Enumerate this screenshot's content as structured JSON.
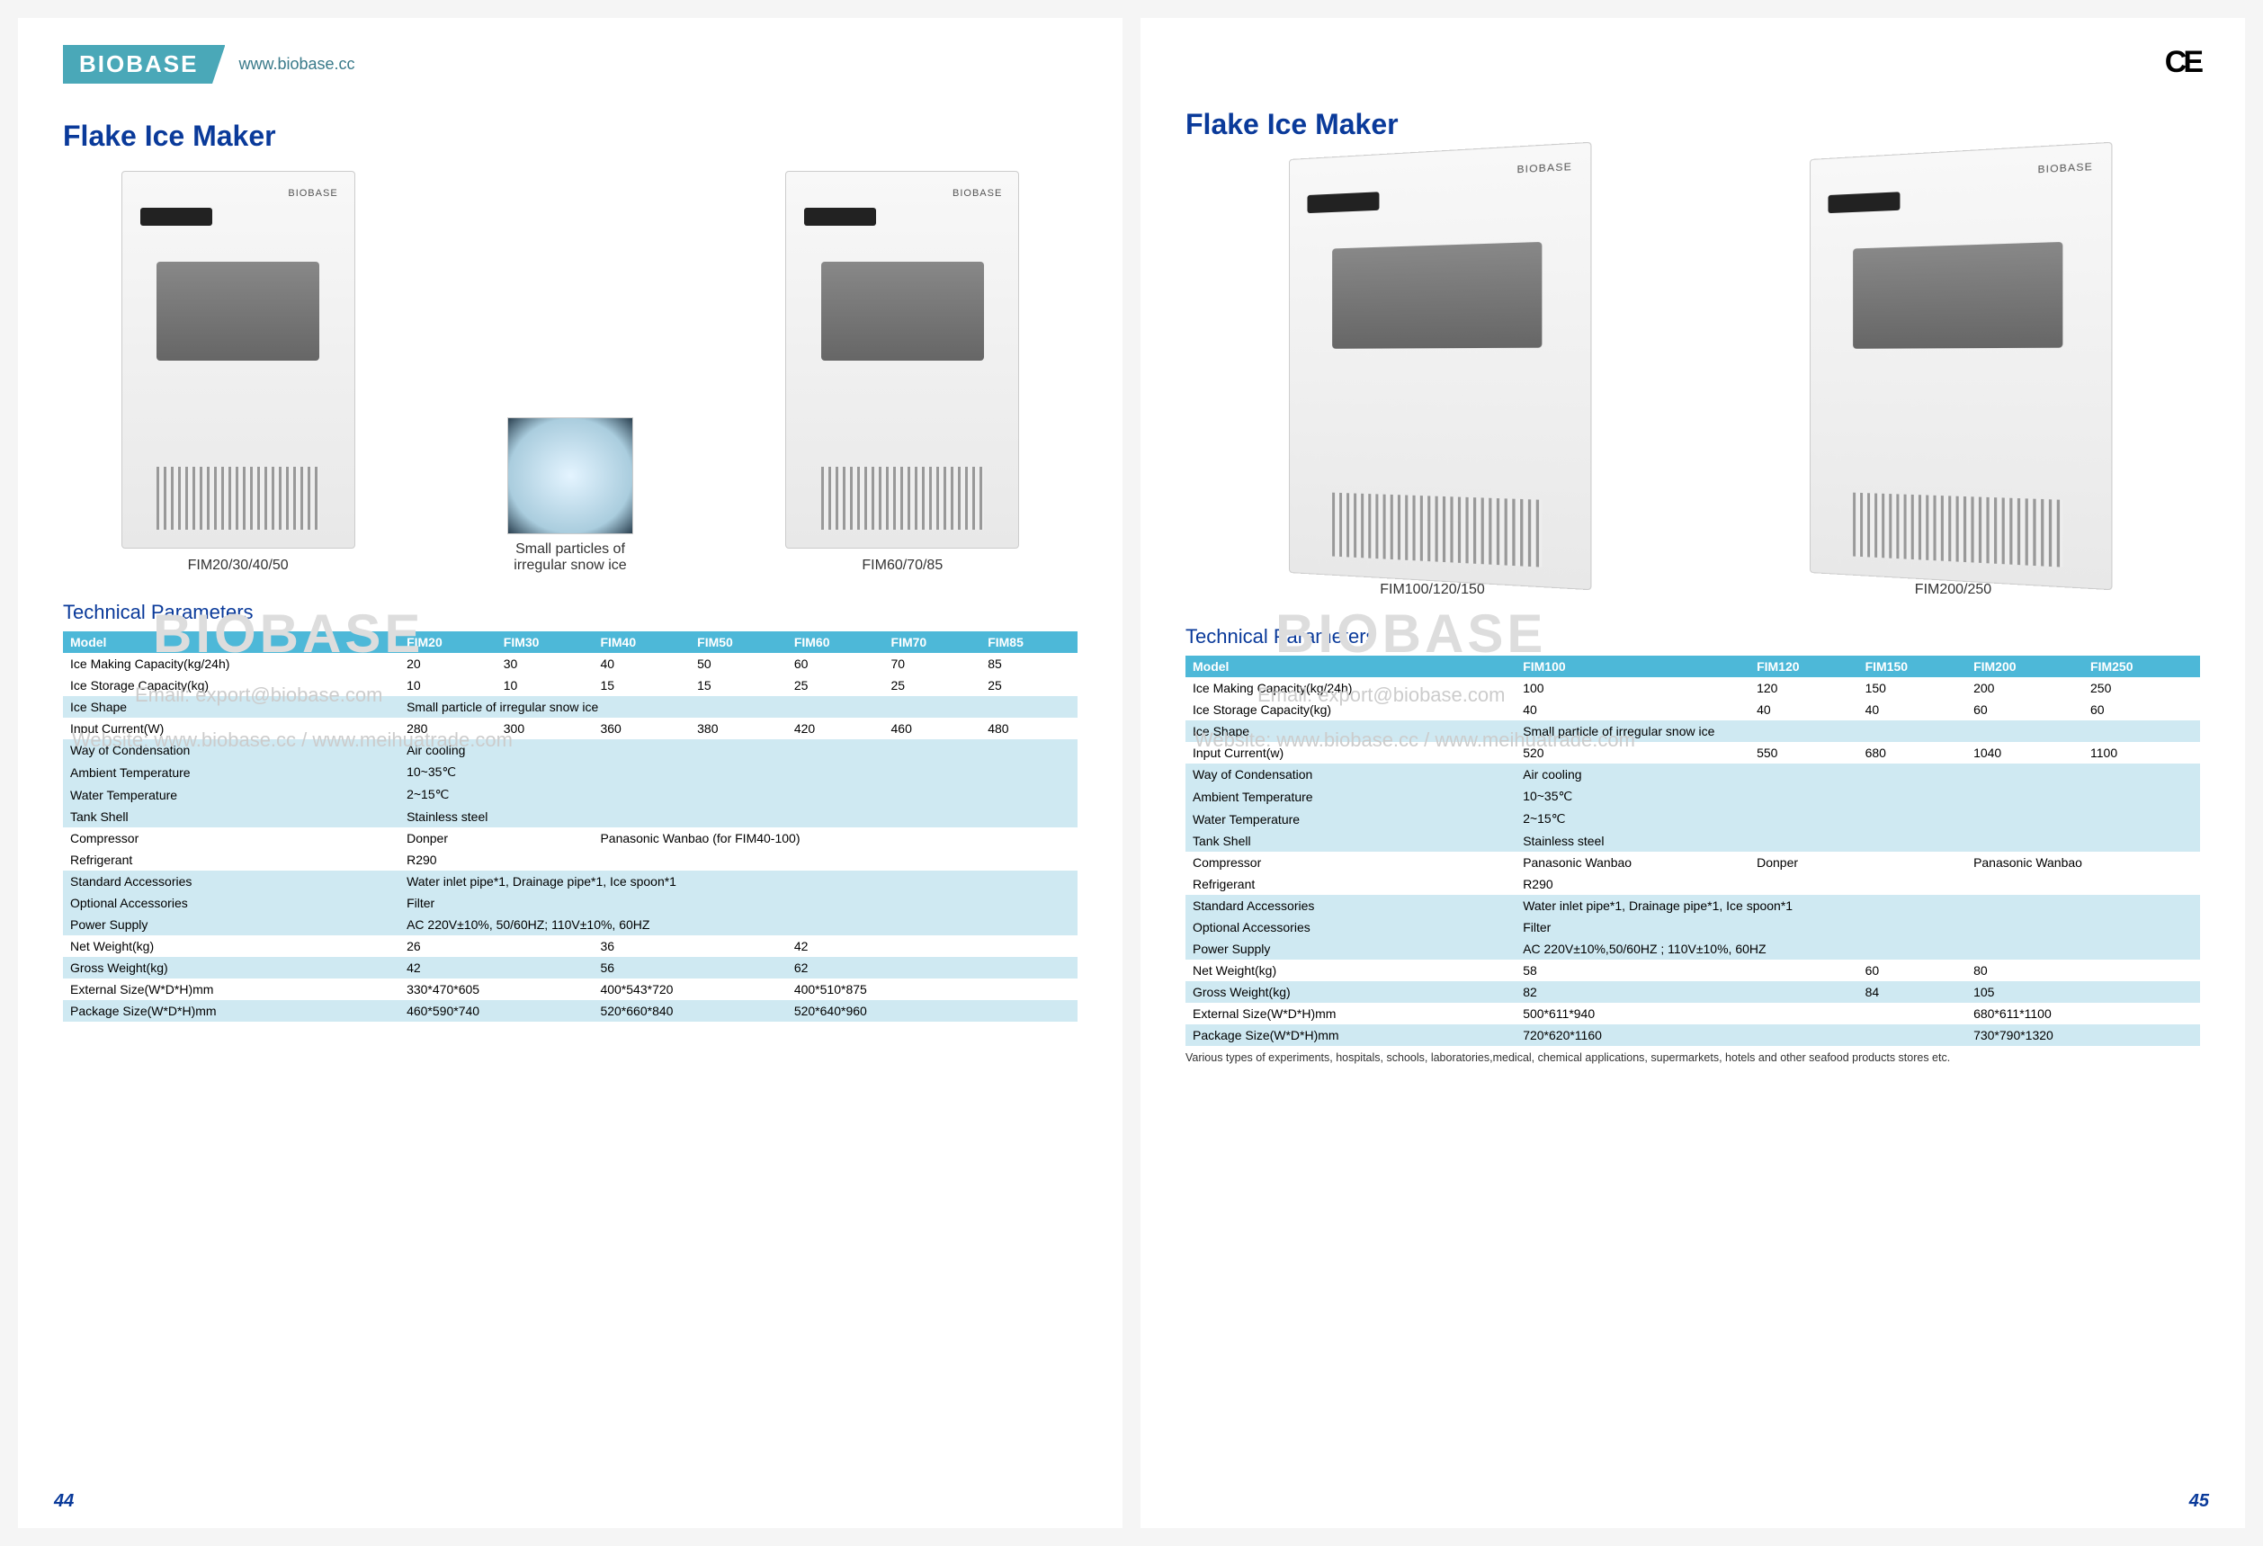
{
  "brand": "BIOBASE",
  "url": "www.biobase.cc",
  "ce": "CE",
  "title": "Flake Ice Maker",
  "watermark": "BIOBASE",
  "wm_email": "Email: export@biobase.com",
  "wm_site": "Website: www.biobase.cc / www.meihuatrade.com",
  "left": {
    "img1_caption": "FIM20/30/40/50",
    "img2_caption": "FIM60/70/85",
    "ice_caption": "Small particles of irregular snow ice",
    "tech_title": "Technical Parameters",
    "page_num": "44",
    "col_count": 8,
    "headers": [
      "Model",
      "FIM20",
      "FIM30",
      "FIM40",
      "FIM50",
      "FIM60",
      "FIM70",
      "FIM85"
    ],
    "rows": [
      {
        "band": false,
        "cells": [
          "Ice Making Capacity(kg/24h)",
          "20",
          "30",
          "40",
          "50",
          "60",
          "70",
          "85"
        ]
      },
      {
        "band": false,
        "cells": [
          "Ice Storage Capacity(kg)",
          "10",
          "10",
          "15",
          "15",
          "25",
          "25",
          "25"
        ]
      },
      {
        "band": true,
        "cells": [
          "Ice Shape",
          "Small particle of irregular snow ice"
        ],
        "span": 7
      },
      {
        "band": false,
        "cells": [
          "Input Current(W)",
          "280",
          "300",
          "360",
          "380",
          "420",
          "460",
          "480"
        ]
      },
      {
        "band": true,
        "cells": [
          "Way of Condensation",
          "Air cooling"
        ],
        "span": 7
      },
      {
        "band": true,
        "cells": [
          "Ambient Temperature",
          "10~35℃"
        ],
        "span": 7
      },
      {
        "band": true,
        "cells": [
          "Water Temperature",
          "2~15℃"
        ],
        "span": 7
      },
      {
        "band": true,
        "cells": [
          "Tank Shell",
          "Stainless steel"
        ],
        "span": 7
      },
      {
        "band": false,
        "cells": [
          "Compressor",
          "Donper",
          "",
          "Panasonic Wanbao (for FIM40-100)",
          "",
          "",
          "",
          ""
        ],
        "spans": [
          1,
          2,
          5
        ]
      },
      {
        "band": false,
        "cells": [
          "Refrigerant",
          "R290"
        ],
        "span": 7
      },
      {
        "band": true,
        "cells": [
          "Standard Accessories",
          "Water inlet pipe*1, Drainage pipe*1, Ice spoon*1"
        ],
        "span": 7
      },
      {
        "band": true,
        "cells": [
          "Optional Accessories",
          "Filter"
        ],
        "span": 7
      },
      {
        "band": true,
        "cells": [
          "Power Supply",
          "AC 220V±10%, 50/60HZ; 110V±10%, 60HZ"
        ],
        "span": 7
      },
      {
        "band": false,
        "cells": [
          "Net Weight(kg)",
          "26",
          "",
          "36",
          "",
          "42",
          "",
          ""
        ],
        "spans": [
          1,
          2,
          2,
          3
        ]
      },
      {
        "band": true,
        "cells": [
          "Gross Weight(kg)",
          "42",
          "",
          "56",
          "",
          "62",
          "",
          ""
        ],
        "spans": [
          1,
          2,
          2,
          3
        ]
      },
      {
        "band": false,
        "cells": [
          "External Size(W*D*H)mm",
          "330*470*605",
          "",
          "400*543*720",
          "",
          "400*510*875",
          "",
          ""
        ],
        "spans": [
          1,
          2,
          2,
          3
        ]
      },
      {
        "band": true,
        "cells": [
          "Package Size(W*D*H)mm",
          "460*590*740",
          "",
          "520*660*840",
          "",
          "520*640*960",
          "",
          ""
        ],
        "spans": [
          1,
          2,
          2,
          3
        ]
      }
    ]
  },
  "right": {
    "img1_caption": "FIM100/120/150",
    "img2_caption": "FIM200/250",
    "tech_title": "Technical Parameters",
    "page_num": "45",
    "footnote": "Various types of experiments, hospitals, schools, laboratories,medical, chemical applications, supermarkets, hotels and other seafood products stores etc.",
    "col_count": 6,
    "headers": [
      "Model",
      "FIM100",
      "FIM120",
      "FIM150",
      "FIM200",
      "FIM250"
    ],
    "rows": [
      {
        "band": false,
        "cells": [
          "Ice Making Capacity(kg/24h)",
          "100",
          "120",
          "150",
          "200",
          "250"
        ]
      },
      {
        "band": false,
        "cells": [
          "Ice Storage Capacity(kg)",
          "40",
          "40",
          "40",
          "60",
          "60"
        ]
      },
      {
        "band": true,
        "cells": [
          "Ice Shape",
          "Small particle of irregular snow ice"
        ],
        "span": 5
      },
      {
        "band": false,
        "cells": [
          "Input Current(w)",
          "520",
          "550",
          "680",
          "1040",
          "1100"
        ]
      },
      {
        "band": true,
        "cells": [
          "Way of Condensation",
          "Air cooling"
        ],
        "span": 5
      },
      {
        "band": true,
        "cells": [
          "Ambient Temperature",
          "10~35℃"
        ],
        "span": 5
      },
      {
        "band": true,
        "cells": [
          "Water Temperature",
          "2~15℃"
        ],
        "span": 5
      },
      {
        "band": true,
        "cells": [
          "Tank Shell",
          "Stainless steel"
        ],
        "span": 5
      },
      {
        "band": false,
        "cells": [
          "Compressor",
          "Panasonic Wanbao",
          "Donper",
          "",
          "Panasonic Wanbao",
          ""
        ],
        "spans": [
          1,
          1,
          2,
          2
        ]
      },
      {
        "band": false,
        "cells": [
          "Refrigerant",
          "R290"
        ],
        "span": 5
      },
      {
        "band": true,
        "cells": [
          "Standard Accessories",
          "Water inlet pipe*1, Drainage pipe*1, Ice spoon*1"
        ],
        "span": 5
      },
      {
        "band": true,
        "cells": [
          "Optional Accessories",
          "Filter"
        ],
        "span": 5
      },
      {
        "band": true,
        "cells": [
          "Power Supply",
          "AC 220V±10%,50/60HZ ; 110V±10%, 60HZ"
        ],
        "span": 5
      },
      {
        "band": false,
        "cells": [
          "Net Weight(kg)",
          "58",
          "",
          "60",
          "80",
          ""
        ],
        "spans": [
          1,
          2,
          1,
          2
        ]
      },
      {
        "band": true,
        "cells": [
          "Gross Weight(kg)",
          "82",
          "",
          "84",
          "105",
          ""
        ],
        "spans": [
          1,
          2,
          1,
          2
        ]
      },
      {
        "band": false,
        "cells": [
          "External Size(W*D*H)mm",
          "500*611*940",
          "",
          "",
          "680*611*1100",
          ""
        ],
        "spans": [
          1,
          3,
          2
        ]
      },
      {
        "band": true,
        "cells": [
          "Package Size(W*D*H)mm",
          "720*620*1160",
          "",
          "",
          "730*790*1320",
          ""
        ],
        "spans": [
          1,
          3,
          2
        ]
      }
    ]
  },
  "colors": {
    "header_bg": "#4db8d8",
    "band_bg": "#cfe9f2",
    "title": "#0a3a9a",
    "logo_bg": "#4aa8b8"
  }
}
